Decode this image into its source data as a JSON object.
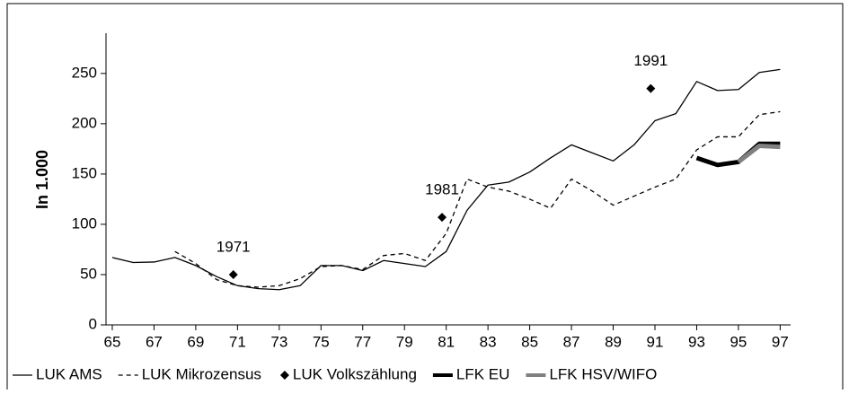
{
  "chart_data": {
    "type": "line",
    "ylabel": "In 1.000",
    "x": [
      65,
      66,
      67,
      68,
      69,
      70,
      71,
      72,
      73,
      74,
      75,
      76,
      77,
      78,
      79,
      80,
      81,
      82,
      83,
      84,
      85,
      86,
      87,
      88,
      89,
      90,
      91,
      92,
      93,
      94,
      95,
      96,
      97
    ],
    "xlim": [
      64.7,
      97.5
    ],
    "xticks": [
      65,
      67,
      69,
      71,
      73,
      75,
      77,
      79,
      81,
      83,
      85,
      87,
      89,
      91,
      93,
      95,
      97
    ],
    "ylim": [
      0,
      290
    ],
    "yticks": [
      0,
      50,
      100,
      150,
      200,
      250
    ],
    "series": [
      {
        "name": "LUK AMS",
        "color": "#000000",
        "style": "solid",
        "width": 1.3,
        "values": [
          67,
          62,
          62.5,
          67,
          59,
          48,
          39,
          36,
          35,
          39,
          59,
          59,
          54,
          64,
          61,
          58,
          73,
          114,
          139,
          142,
          152,
          166,
          179,
          171,
          163,
          179,
          203,
          210,
          242,
          233,
          234,
          251,
          254
        ]
      },
      {
        "name": "LUK Mikrozensus",
        "color": "#000000",
        "style": "dashed",
        "width": 1.3,
        "values": [
          null,
          null,
          null,
          73,
          61,
          45,
          39,
          37.5,
          39,
          46,
          58,
          59,
          55,
          69,
          71,
          64,
          91,
          145,
          137,
          133,
          125,
          116,
          145,
          133,
          119,
          128,
          137,
          145,
          174,
          187,
          187,
          209,
          212
        ]
      },
      {
        "name": "LUK Volkszählung",
        "color": "#000000",
        "style": "marker",
        "x": [
          70.8,
          80.8,
          90.8
        ],
        "values": [
          50,
          107,
          235
        ],
        "labels": [
          "1971",
          "1981",
          "1991"
        ]
      },
      {
        "name": "LFK EU",
        "color": "#000000",
        "style": "solid",
        "width": 5,
        "values": [
          null,
          null,
          null,
          null,
          null,
          null,
          null,
          null,
          null,
          null,
          null,
          null,
          null,
          null,
          null,
          null,
          null,
          null,
          null,
          null,
          null,
          null,
          null,
          null,
          null,
          null,
          null,
          null,
          166,
          159,
          162,
          180,
          180
        ]
      },
      {
        "name": "LFK HSV/WIFO",
        "color": "#808080",
        "style": "solid",
        "width": 5,
        "values": [
          null,
          null,
          null,
          null,
          null,
          null,
          null,
          null,
          null,
          null,
          null,
          null,
          null,
          null,
          null,
          null,
          null,
          null,
          null,
          null,
          null,
          null,
          null,
          null,
          null,
          null,
          null,
          null,
          null,
          null,
          162,
          178,
          177
        ]
      }
    ]
  }
}
